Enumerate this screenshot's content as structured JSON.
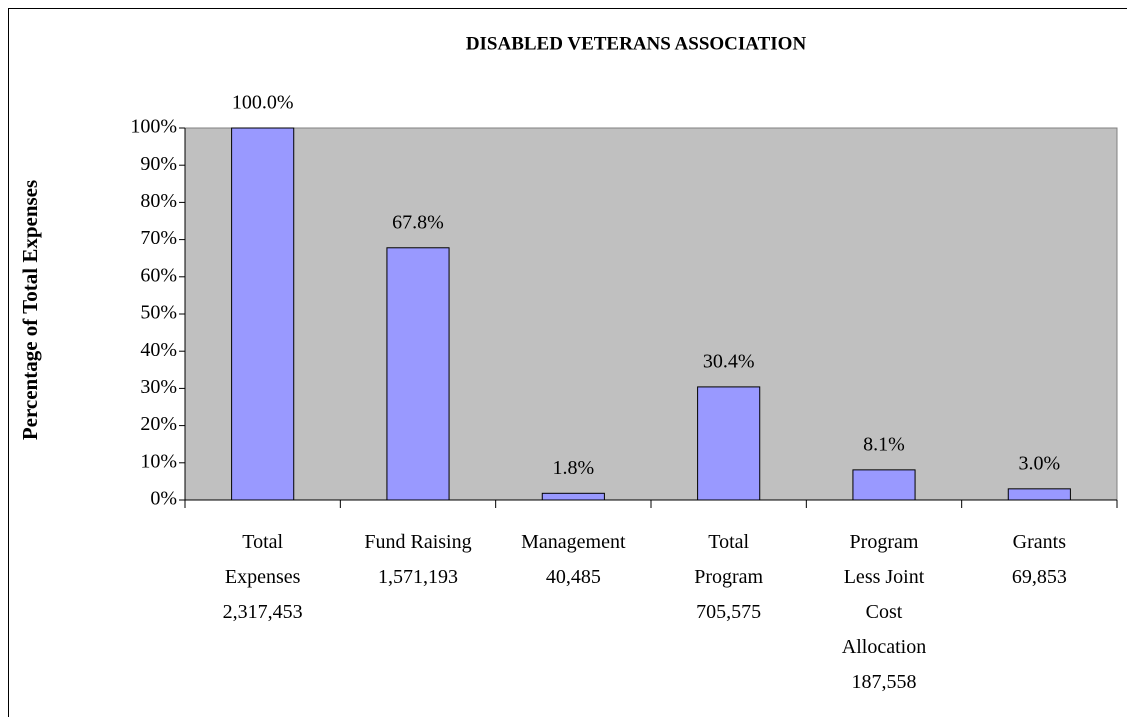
{
  "chart_data": {
    "type": "bar",
    "title": "DISABLED VETERANS ASSOCIATION",
    "ylabel": "Percentage of Total Expenses",
    "categories": [
      "Total\nExpenses\n2,317,453",
      "Fund Raising\n1,571,193",
      "Management\n40,485",
      "Total\nProgram\n705,575",
      "Program\nLess Joint\nCost\nAllocation\n187,558",
      "Grants\n69,853"
    ],
    "values": [
      100,
      67.8,
      1.8,
      30.4,
      8.1,
      3.0
    ],
    "value_labels": [
      "100.0%",
      "67.8%",
      "1.8%",
      "30.4%",
      "8.1%",
      "3.0%"
    ],
    "color": "#9999ff",
    "ylim": [
      0,
      100
    ],
    "yticks": [
      {
        "value": 0,
        "label": "0%"
      },
      {
        "value": 10,
        "label": "10%"
      },
      {
        "value": 20,
        "label": "20%"
      },
      {
        "value": 30,
        "label": "30%"
      },
      {
        "value": 40,
        "label": "40%"
      },
      {
        "value": 50,
        "label": "50%"
      },
      {
        "value": 60,
        "label": "60%"
      },
      {
        "value": 70,
        "label": "70%"
      },
      {
        "value": 80,
        "label": "80%"
      },
      {
        "value": 90,
        "label": "90%"
      },
      {
        "value": 100,
        "label": "100%"
      }
    ],
    "grid": false
  }
}
